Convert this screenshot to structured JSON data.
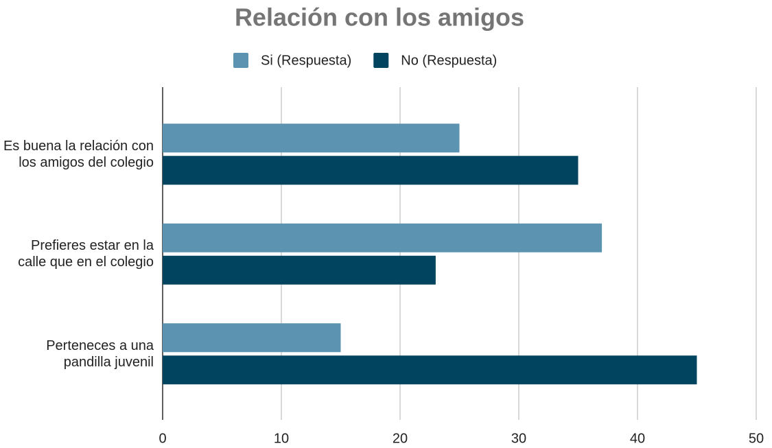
{
  "chart_data": {
    "type": "bar",
    "orientation": "horizontal",
    "title": "Relación con los amigos",
    "categories": [
      "Es buena la relación con los amigos del colegio",
      "Prefieres estar en la calle que en el colegio",
      "Perteneces a una pandilla juvenil"
    ],
    "series": [
      {
        "name": "Si (Respuesta)",
        "color": "#5b93b0",
        "values": [
          25,
          37,
          15
        ]
      },
      {
        "name": "No (Respuesta)",
        "color": "#01445f",
        "values": [
          35,
          23,
          45
        ]
      }
    ],
    "xlim": [
      0,
      50
    ],
    "xticks": [
      0,
      10,
      20,
      30,
      40,
      50
    ],
    "grid": true,
    "legend": "top"
  }
}
